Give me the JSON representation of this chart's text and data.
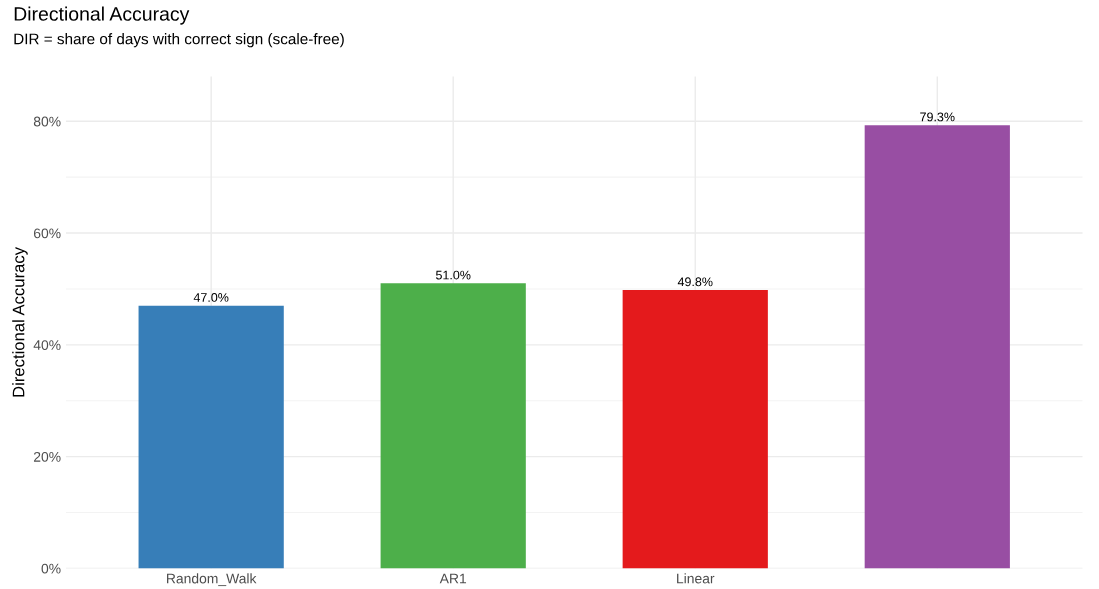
{
  "chart_data": {
    "type": "bar",
    "title": "Directional Accuracy",
    "subtitle": "DIR = share of days with correct sign (scale-free)",
    "ylabel": "Directional Accuracy",
    "categories": [
      "Random_Walk",
      "AR1",
      "Linear",
      null
    ],
    "values": [
      47.0,
      51.0,
      49.8,
      79.3
    ],
    "colors": [
      "#377eb8",
      "#4daf4a",
      "#e41a1c",
      "#984ea3"
    ],
    "value_labels": [
      "47.0%",
      "51.0%",
      "49.8%",
      "79.3%"
    ],
    "ylim": [
      0,
      88
    ],
    "yticks": [
      {
        "value": 0,
        "label": "0%"
      },
      {
        "value": 20,
        "label": "20%"
      },
      {
        "value": 40,
        "label": "40%"
      },
      {
        "value": 60,
        "label": "60%"
      },
      {
        "value": 80,
        "label": "80%"
      }
    ],
    "grid": true,
    "legend": false
  }
}
